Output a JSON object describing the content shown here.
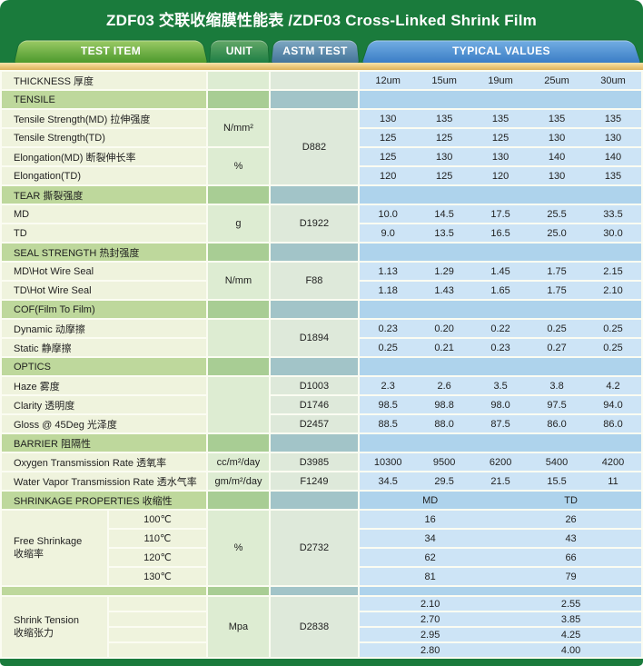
{
  "title": "ZDF03 交联收缩膜性能表 /ZDF03 Cross-Linked Shrink Film",
  "tabs": {
    "test_item": "TEST ITEM",
    "unit": "UNIT",
    "astm": "ASTM TEST",
    "typical_values": "TYPICAL VALUES"
  },
  "colors": {
    "header_green": "#1a7b3c",
    "yellow_bar": "#eac87a",
    "section_item": "#bed89c",
    "section_unit": "#a8cd94",
    "section_astm": "#a2c4c8",
    "section_values": "#aed3ec",
    "cell_item": "#eff3dd",
    "cell_unit": "#ddecd2",
    "cell_astm": "#dee9da",
    "cell_values": "#cde4f6",
    "gap": "#fbfcf2",
    "text": "#1f1f1f"
  },
  "table": {
    "rows": [
      {
        "type": "row",
        "label": "THICKNESS 厚度",
        "unit": {
          "text": "",
          "rows": 1
        },
        "astm": {
          "text": "",
          "rows": 1
        },
        "values": [
          "12um",
          "15um",
          "19um",
          "25um",
          "30um"
        ]
      },
      {
        "type": "section",
        "label": "TENSILE"
      },
      {
        "type": "row",
        "label": "Tensile Strength(MD) 拉伸强度",
        "unit": {
          "text": "N/mm²",
          "rows": 2
        },
        "astm": {
          "text": "D882",
          "rows": 4
        },
        "values": [
          "130",
          "135",
          "135",
          "135",
          "135"
        ]
      },
      {
        "type": "row",
        "label": "Tensile Strength(TD)",
        "values": [
          "125",
          "125",
          "125",
          "130",
          "130"
        ]
      },
      {
        "type": "row",
        "label": "Elongation(MD) 断裂伸长率",
        "unit": {
          "text": "%",
          "rows": 2
        },
        "values": [
          "125",
          "130",
          "130",
          "140",
          "140"
        ]
      },
      {
        "type": "row",
        "label": "Elongation(TD)",
        "values": [
          "120",
          "125",
          "120",
          "130",
          "135"
        ]
      },
      {
        "type": "section",
        "label": "TEAR 撕裂强度"
      },
      {
        "type": "row",
        "label": "MD",
        "unit": {
          "text": "g",
          "rows": 2
        },
        "astm": {
          "text": "D1922",
          "rows": 2
        },
        "values": [
          "10.0",
          "14.5",
          "17.5",
          "25.5",
          "33.5"
        ]
      },
      {
        "type": "row",
        "label": "TD",
        "values": [
          "9.0",
          "13.5",
          "16.5",
          "25.0",
          "30.0"
        ]
      },
      {
        "type": "section",
        "label": "SEAL STRENGTH 热封强度"
      },
      {
        "type": "row",
        "label": "MD\\Hot Wire Seal",
        "unit": {
          "text": "N/mm",
          "rows": 2
        },
        "astm": {
          "text": "F88",
          "rows": 2
        },
        "values": [
          "1.13",
          "1.29",
          "1.45",
          "1.75",
          "2.15"
        ]
      },
      {
        "type": "row",
        "label": "TD\\Hot Wire Seal",
        "values": [
          "1.18",
          "1.43",
          "1.65",
          "1.75",
          "2.10"
        ]
      },
      {
        "type": "section",
        "label": "COF(Film To Film)"
      },
      {
        "type": "row",
        "label": "Dynamic 动摩擦",
        "unit": {
          "text": "",
          "rows": 2
        },
        "astm": {
          "text": "D1894",
          "rows": 2
        },
        "values": [
          "0.23",
          "0.20",
          "0.22",
          "0.25",
          "0.25"
        ]
      },
      {
        "type": "row",
        "label": "Static 静摩擦",
        "values": [
          "0.25",
          "0.21",
          "0.23",
          "0.27",
          "0.25"
        ]
      },
      {
        "type": "section",
        "label": "OPTICS"
      },
      {
        "type": "row",
        "label": "Haze 雾度",
        "unit": {
          "text": "",
          "rows": 3
        },
        "astm": {
          "text": "D1003",
          "rows": 1
        },
        "values": [
          "2.3",
          "2.6",
          "3.5",
          "3.8",
          "4.2"
        ]
      },
      {
        "type": "row",
        "label": "Clarity 透明度",
        "astm": {
          "text": "D1746",
          "rows": 1
        },
        "values": [
          "98.5",
          "98.8",
          "98.0",
          "97.5",
          "94.0"
        ]
      },
      {
        "type": "row",
        "label": "Gloss @ 45Deg 光泽度",
        "astm": {
          "text": "D2457",
          "rows": 1
        },
        "values": [
          "88.5",
          "88.0",
          "87.5",
          "86.0",
          "86.0"
        ]
      },
      {
        "type": "section",
        "label": "BARRIER 阻隔性"
      },
      {
        "type": "row",
        "label": "Oxygen Transmission Rate 透氧率",
        "unit": {
          "text": "cc/m²/day",
          "rows": 1
        },
        "astm": {
          "text": "D3985",
          "rows": 1
        },
        "values": [
          "10300",
          "9500",
          "6200",
          "5400",
          "4200"
        ]
      },
      {
        "type": "row",
        "label": "Water Vapor Transmission Rate 透水气率",
        "unit": {
          "text": "gm/m²/day",
          "rows": 1
        },
        "astm": {
          "text": "F1249",
          "rows": 1
        },
        "values": [
          "34.5",
          "29.5",
          "21.5",
          "15.5",
          "11"
        ]
      },
      {
        "type": "section",
        "label": "SHRINKAGE PROPERTIES 收缩性",
        "split_header": [
          "MD",
          "TD"
        ]
      },
      {
        "type": "split",
        "group": {
          "line1": "Free Shrinkage",
          "line2": "收缩率",
          "rows": 4
        },
        "sub": "100℃",
        "unit": {
          "text": "%",
          "rows": 4
        },
        "astm": {
          "text": "D2732",
          "rows": 4
        },
        "pair": [
          "16",
          "26"
        ]
      },
      {
        "type": "split",
        "sub": "110℃",
        "pair": [
          "34",
          "43"
        ]
      },
      {
        "type": "split",
        "sub": "120℃",
        "pair": [
          "62",
          "66"
        ]
      },
      {
        "type": "split",
        "sub": "130℃",
        "pair": [
          "81",
          "79"
        ]
      },
      {
        "type": "spacer"
      },
      {
        "type": "split",
        "group": {
          "line1": "Shrink Tension",
          "line2": "收缩张力",
          "rows": 4
        },
        "sub": "",
        "unit": {
          "text": "Mpa",
          "rows": 4
        },
        "astm": {
          "text": "D2838",
          "rows": 4
        },
        "pair": [
          "2.10",
          "2.55"
        ]
      },
      {
        "type": "split",
        "sub": "",
        "pair": [
          "2.70",
          "3.85"
        ]
      },
      {
        "type": "split",
        "sub": "",
        "pair": [
          "2.95",
          "4.25"
        ]
      },
      {
        "type": "split",
        "sub": "",
        "pair": [
          "2.80",
          "4.00"
        ]
      }
    ]
  }
}
